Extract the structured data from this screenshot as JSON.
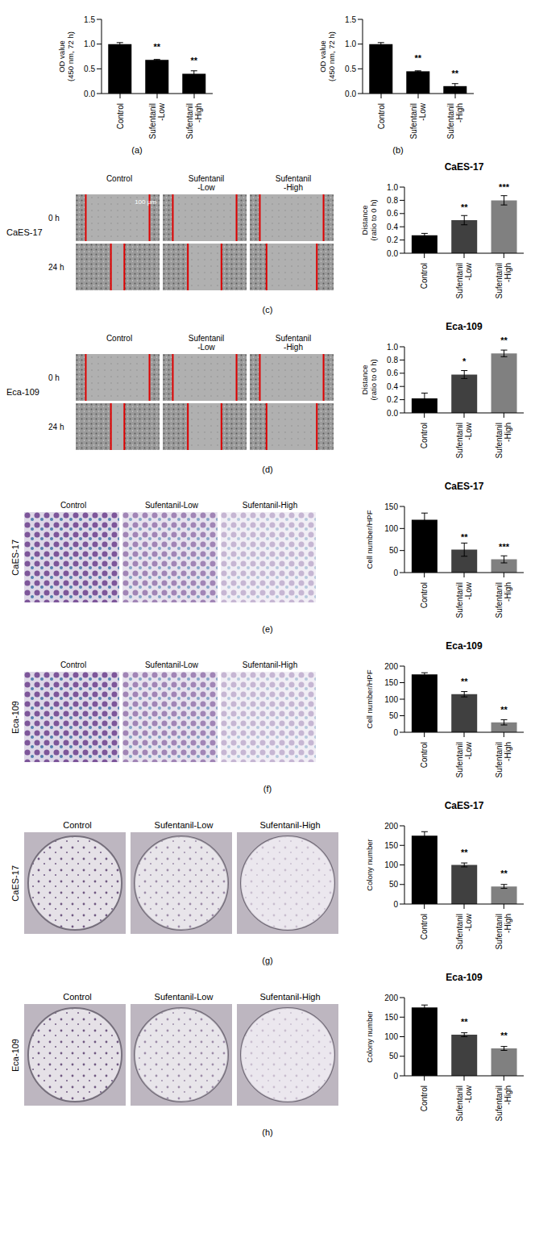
{
  "chart_data": [
    {
      "type": "bar",
      "panel": "(a)",
      "ylabel": "OD value (450 nm, 72 h)",
      "categories": [
        "Control",
        "Sufentanil-Low",
        "Sufentanil-High"
      ],
      "values": [
        1.0,
        0.68,
        0.4
      ],
      "errors": [
        0.03,
        0.01,
        0.06
      ],
      "significance": [
        null,
        "**",
        "**"
      ],
      "colors": [
        "#000000",
        "#000000",
        "#000000"
      ],
      "ylim": [
        0,
        1.5
      ],
      "yticks": [
        {
          "value": 0,
          "label": "0.0"
        },
        {
          "value": 0.5,
          "label": "0.5"
        },
        {
          "value": 1,
          "label": "1.0"
        },
        {
          "value": 1.5,
          "label": "1.5"
        }
      ]
    },
    {
      "type": "bar",
      "panel": "(b)",
      "ylabel": "OD value (450 nm, 72 h)",
      "categories": [
        "Control",
        "Sufentanil-Low",
        "Sufentanil-High"
      ],
      "values": [
        1.0,
        0.45,
        0.15
      ],
      "errors": [
        0.03,
        0.01,
        0.05
      ],
      "significance": [
        null,
        "**",
        "**"
      ],
      "colors": [
        "#000000",
        "#000000",
        "#000000"
      ],
      "ylim": [
        0,
        1.5
      ],
      "yticks": [
        {
          "value": 0,
          "label": "0.0"
        },
        {
          "value": 0.5,
          "label": "0.5"
        },
        {
          "value": 1,
          "label": "1.0"
        },
        {
          "value": 1.5,
          "label": "1.5"
        }
      ]
    },
    {
      "type": "bar",
      "panel": "(c)",
      "title": "CaES-17",
      "ylabel": "Distance (ratio to 0 h)",
      "categories": [
        "Control",
        "Sufentanil-Low",
        "Sufentanil-High"
      ],
      "values": [
        0.27,
        0.5,
        0.8
      ],
      "errors": [
        0.03,
        0.07,
        0.07
      ],
      "significance": [
        null,
        "**",
        "***"
      ],
      "colors": [
        "#000000",
        "#404040",
        "#808080"
      ],
      "ylim": [
        0,
        1
      ],
      "yticks": [
        {
          "value": 0,
          "label": "0.0"
        },
        {
          "value": 0.2,
          "label": "0.2"
        },
        {
          "value": 0.4,
          "label": "0.4"
        },
        {
          "value": 0.6,
          "label": "0.6"
        },
        {
          "value": 0.8,
          "label": "0.8"
        },
        {
          "value": 1,
          "label": "1.0"
        }
      ]
    },
    {
      "type": "bar",
      "panel": "(d)",
      "title": "Eca-109",
      "ylabel": "Distance (ratio to 0 h)",
      "categories": [
        "Control",
        "Sufentanil-Low",
        "Sufentanil-High"
      ],
      "values": [
        0.22,
        0.58,
        0.9
      ],
      "errors": [
        0.08,
        0.06,
        0.05
      ],
      "significance": [
        null,
        "*",
        "**"
      ],
      "colors": [
        "#000000",
        "#404040",
        "#808080"
      ],
      "ylim": [
        0,
        1
      ],
      "yticks": [
        {
          "value": 0,
          "label": "0.0"
        },
        {
          "value": 0.2,
          "label": "0.2"
        },
        {
          "value": 0.4,
          "label": "0.4"
        },
        {
          "value": 0.6,
          "label": "0.6"
        },
        {
          "value": 0.8,
          "label": "0.8"
        },
        {
          "value": 1,
          "label": "1.0"
        }
      ]
    },
    {
      "type": "bar",
      "panel": "(e)",
      "title": "CaES-17",
      "ylabel": "Cell number/HPF",
      "categories": [
        "Control",
        "Sufentanil-Low",
        "Sufentanil-High"
      ],
      "values": [
        120,
        52,
        30
      ],
      "errors": [
        15,
        15,
        8
      ],
      "significance": [
        null,
        "**",
        "***"
      ],
      "colors": [
        "#000000",
        "#404040",
        "#808080"
      ],
      "ylim": [
        0,
        150
      ],
      "yticks": [
        0,
        50,
        100,
        150
      ]
    },
    {
      "type": "bar",
      "panel": "(f)",
      "title": "Eca-109",
      "ylabel": "Cell number/HPF",
      "categories": [
        "Control",
        "Sufentanil-Low",
        "Sufentanil-High"
      ],
      "values": [
        175,
        115,
        30
      ],
      "errors": [
        5,
        8,
        8
      ],
      "significance": [
        null,
        "**",
        "**"
      ],
      "colors": [
        "#000000",
        "#404040",
        "#808080"
      ],
      "ylim": [
        0,
        200
      ],
      "yticks": [
        0,
        50,
        100,
        150,
        200
      ]
    },
    {
      "type": "bar",
      "panel": "(g)",
      "title": "CaES-17",
      "ylabel": "Colony number",
      "categories": [
        "Control",
        "Sufentanil-Low",
        "Sufentanil-High"
      ],
      "values": [
        175,
        100,
        45
      ],
      "errors": [
        10,
        5,
        5
      ],
      "significance": [
        null,
        "**",
        "**"
      ],
      "colors": [
        "#000000",
        "#404040",
        "#808080"
      ],
      "ylim": [
        0,
        200
      ],
      "yticks": [
        0,
        50,
        100,
        150,
        200
      ]
    },
    {
      "type": "bar",
      "panel": "(h)",
      "title": "Eca-109",
      "ylabel": "Colony number",
      "categories": [
        "Control",
        "Sufentanil-Low",
        "Sufentanil-High"
      ],
      "values": [
        175,
        105,
        70
      ],
      "errors": [
        6,
        5,
        5
      ],
      "significance": [
        null,
        "**",
        "**"
      ],
      "colors": [
        "#000000",
        "#404040",
        "#808080"
      ],
      "ylim": [
        0,
        200
      ],
      "yticks": [
        0,
        50,
        100,
        150,
        200
      ]
    }
  ],
  "image_panels": [
    {
      "kind": "wound",
      "cell_line": "CaES-17",
      "columns": [
        "Control",
        "Sufentanil-Low",
        "Sufentanil-High"
      ],
      "rows": [
        "0 h",
        "24 h"
      ],
      "scale_bar": "100 μm"
    },
    {
      "kind": "wound",
      "cell_line": "Eca-109",
      "columns": [
        "Control",
        "Sufentanil-Low",
        "Sufentanil-High"
      ],
      "rows": [
        "0 h",
        "24 h"
      ]
    },
    {
      "kind": "transwell",
      "cell_line": "CaES-17",
      "columns": [
        "Control",
        "Sufentanil-Low",
        "Sufentanil-High"
      ]
    },
    {
      "kind": "transwell",
      "cell_line": "Eca-109",
      "columns": [
        "Control",
        "Sufentanil-Low",
        "Sufentanil-High"
      ]
    },
    {
      "kind": "colony",
      "cell_line": "CaES-17",
      "columns": [
        "Control",
        "Sufentanil-Low",
        "Sufentanil-High"
      ]
    },
    {
      "kind": "colony",
      "cell_line": "Eca-109",
      "columns": [
        "Control",
        "Sufentanil-Low",
        "Sufentanil-High"
      ]
    }
  ]
}
